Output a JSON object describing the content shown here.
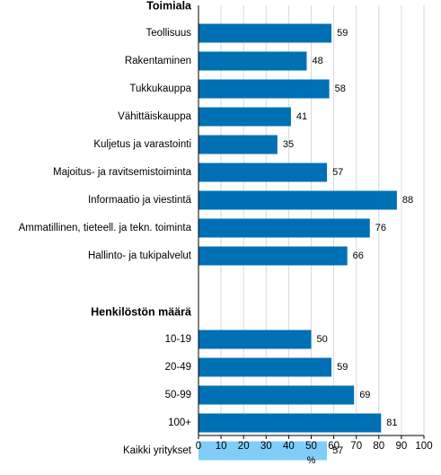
{
  "colors": {
    "bar_primary": "#0070b5",
    "bar_highlight": "#7fcdf8",
    "gridline": "#d9d9d9",
    "axis": "#000000"
  },
  "chart_data": {
    "type": "bar",
    "orientation": "horizontal",
    "title": "",
    "xlabel": "%",
    "ylabel": "",
    "xlim": [
      0,
      100
    ],
    "xticks": [
      0,
      10,
      20,
      30,
      40,
      50,
      60,
      70,
      80,
      90,
      100
    ],
    "grid": "vertical",
    "legend": "none",
    "groups": [
      {
        "label": "Toimiala",
        "categories": [
          "Teollisuus",
          "Rakentaminen",
          "Tukkukauppa",
          "Vähittäiskauppa",
          "Kuljetus ja varastointi",
          "Majoitus- ja ravitsemistoiminta",
          "Informaatio ja viestintä",
          "Ammatillinen, tieteell. ja tekn. toiminta",
          "Hallinto- ja tukipalvelut"
        ],
        "values": [
          59,
          48,
          58,
          41,
          35,
          57,
          88,
          76,
          66
        ]
      },
      {
        "label": "Henkilöstön määrä",
        "categories": [
          "10-19",
          "20-49",
          "50-99",
          "100+"
        ],
        "values": [
          50,
          59,
          69,
          81
        ]
      },
      {
        "label": "",
        "categories": [
          "Kaikki yritykset"
        ],
        "values": [
          57
        ],
        "highlight": true
      }
    ]
  }
}
